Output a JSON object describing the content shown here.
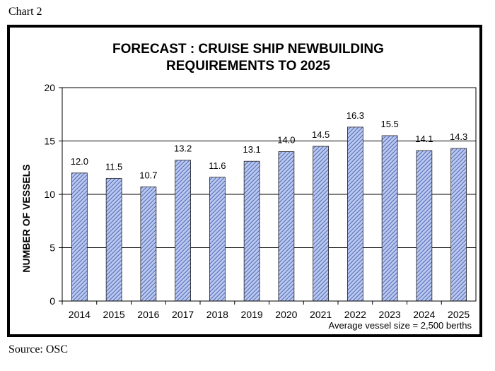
{
  "caption_top": "Chart 2",
  "caption_bottom": "Source: OSC",
  "chart_data": {
    "type": "bar",
    "title_lines": [
      "FORECAST : CRUISE SHIP NEWBUILDING",
      "REQUIREMENTS TO 2025"
    ],
    "ylabel": "NUMBER  OF VESSELS",
    "xlabel": "",
    "note": "Average vessel size = 2,500 berths",
    "categories": [
      "2014",
      "2015",
      "2016",
      "2017",
      "2018",
      "2019",
      "2020",
      "2021",
      "2022",
      "2023",
      "2024",
      "2025"
    ],
    "values": [
      12.0,
      11.5,
      10.7,
      13.2,
      11.6,
      13.1,
      14.0,
      14.5,
      16.3,
      15.5,
      14.1,
      14.3
    ],
    "value_labels": [
      "12.0",
      "11.5",
      "10.7",
      "13.2",
      "11.6",
      "13.1",
      "14.0",
      "14.5",
      "16.3",
      "15.5",
      "14.1",
      "14.3"
    ],
    "ylim": [
      0,
      20
    ],
    "yticks": [
      0,
      5,
      10,
      15,
      20
    ],
    "grid": true,
    "legend": "none",
    "bar_color": "#b8c8f0",
    "bar_hatch_color": "#3a4fa0",
    "border_color": "#000000"
  }
}
